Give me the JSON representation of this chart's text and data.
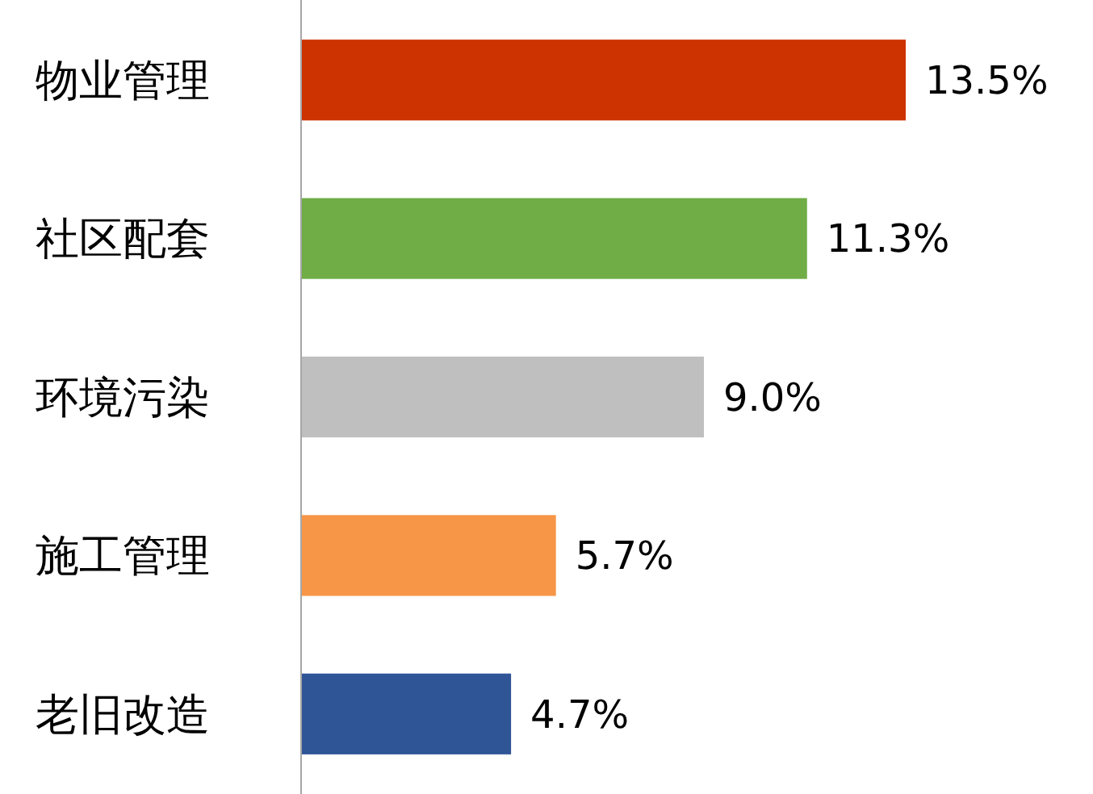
{
  "chart_data": {
    "type": "bar",
    "orientation": "horizontal",
    "categories": [
      "物业管理",
      "社区配套",
      "环境污染",
      "施工管理",
      "老旧改造"
    ],
    "values": [
      13.5,
      11.3,
      9.0,
      5.7,
      4.7
    ],
    "colors": [
      "#cc3300",
      "#70ad47",
      "#bfbfbf",
      "#f79646",
      "#2f5597"
    ],
    "value_labels": [
      "13.5%",
      "11.3%",
      "9.0%",
      "5.7%",
      "4.7%"
    ]
  }
}
